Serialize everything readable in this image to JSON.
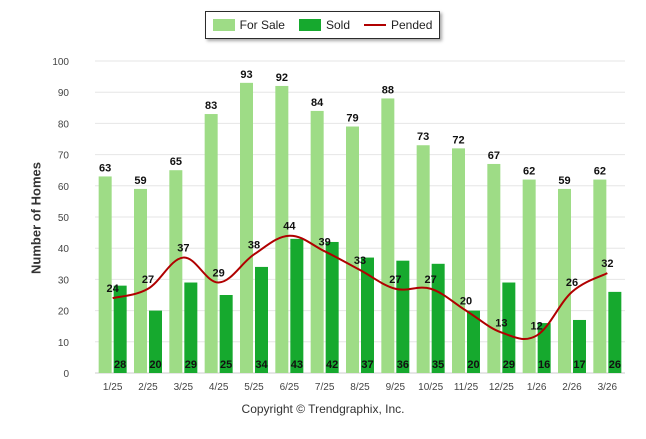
{
  "legend": {
    "for_sale": "For Sale",
    "sold": "Sold",
    "pended": "Pended"
  },
  "colors": {
    "for_sale": "#9edc86",
    "sold": "#16a92e",
    "pended": "#b00000",
    "grid": "#e6e6e6"
  },
  "footer": {
    "copyright": "Copyright © Trendgraphix, Inc."
  },
  "chart_data": {
    "type": "bar",
    "title": "",
    "xlabel": "",
    "ylabel": "Number of Homes",
    "ylim": [
      0,
      100
    ],
    "yticks": [
      0,
      10,
      20,
      30,
      40,
      50,
      60,
      70,
      80,
      90,
      100
    ],
    "grid": true,
    "legend_position": "top-center",
    "categories": [
      "1/25",
      "2/25",
      "3/25",
      "4/25",
      "5/25",
      "6/25",
      "7/25",
      "8/25",
      "9/25",
      "10/25",
      "11/25",
      "12/25",
      "1/26",
      "2/26",
      "3/26"
    ],
    "series": [
      {
        "name": "For Sale",
        "type": "bar",
        "values": [
          63,
          59,
          65,
          83,
          93,
          92,
          84,
          79,
          88,
          73,
          72,
          67,
          62,
          59,
          62
        ]
      },
      {
        "name": "Sold",
        "type": "bar",
        "values": [
          28,
          20,
          29,
          25,
          34,
          43,
          42,
          37,
          36,
          35,
          20,
          29,
          16,
          17,
          26
        ]
      },
      {
        "name": "Pended",
        "type": "line",
        "values": [
          24,
          27,
          37,
          29,
          38,
          44,
          39,
          33,
          27,
          27,
          20,
          13,
          12,
          26,
          32
        ]
      }
    ]
  }
}
